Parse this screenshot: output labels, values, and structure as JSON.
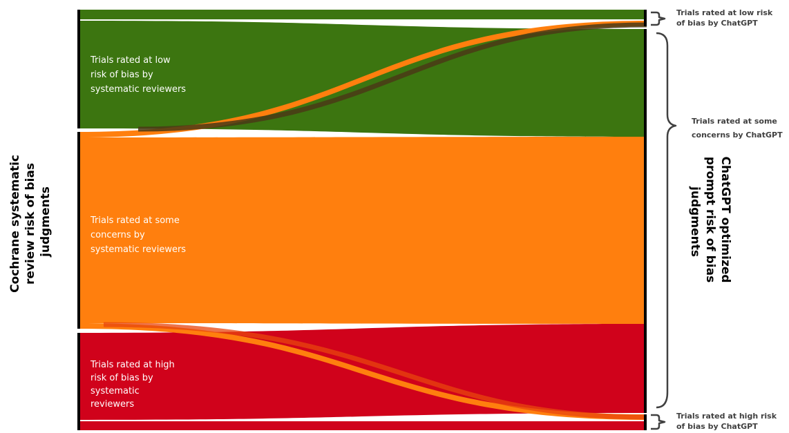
{
  "left_axis_title": {
    "lines": [
      "Cochrane systematic",
      "review risk of bias",
      "judgments"
    ]
  },
  "right_axis_title": {
    "lines": [
      "ChatGPT optimized",
      "prompt risk of bias",
      "judgments"
    ]
  },
  "left_nodes": [
    {
      "id": "low",
      "lines": [
        "Trials rated at low",
        "risk of bias by",
        "systematic reviewers"
      ],
      "color": "#3c7510"
    },
    {
      "id": "some",
      "lines": [
        "Trials rated at some",
        "concerns by",
        "systematic reviewers"
      ],
      "color": "#ff7f0e"
    },
    {
      "id": "high",
      "lines": [
        "Trials rated at high",
        "risk of bias by",
        "systematic",
        "reviewers"
      ],
      "color": "#d0021b"
    }
  ],
  "right_nodes": [
    {
      "id": "low",
      "lines": [
        "Trials rated at low risk",
        "of bias by ChatGPT"
      ]
    },
    {
      "id": "some",
      "lines": [
        "Trials rated at some",
        "concerns by ChatGPT"
      ]
    },
    {
      "id": "high",
      "lines": [
        "Trials rated at high risk",
        "of bias by ChatGPT"
      ]
    }
  ],
  "colors": {
    "low": "#3c7510",
    "some": "#ff7f0e",
    "high": "#d0021b",
    "low_to_some_crossing": "#4a3a16",
    "high_to_some_crossing": "#e8450e",
    "node_bar": "#000000",
    "bracket": "#404040"
  }
}
